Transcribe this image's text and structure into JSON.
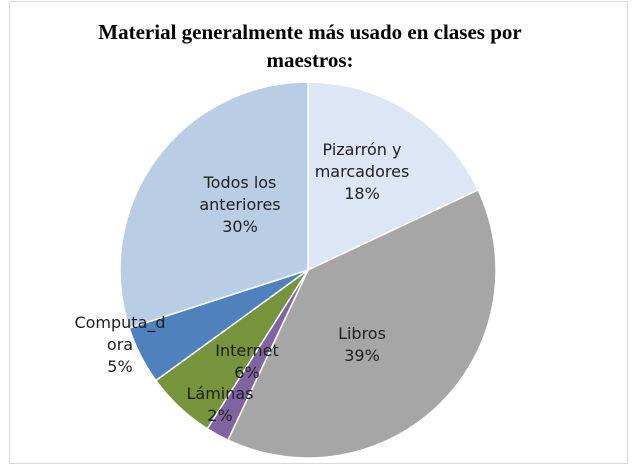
{
  "chart_data": {
    "type": "pie",
    "title": "Material generalmente más usado en clases por maestros:",
    "categories": [
      "Pizarrón y marcadores",
      "Libros",
      "Láminas",
      "Internet",
      "Computa_dora",
      "Todos los anteriores"
    ],
    "values": [
      18,
      39,
      2,
      6,
      5,
      30
    ],
    "value_labels": [
      "18%",
      "39%",
      "2%",
      "6%",
      "5%",
      "30%"
    ],
    "colors": [
      "#dce6f4",
      "#a6a6a6",
      "#8064a2",
      "#77933c",
      "#4f81bd",
      "#b9cde5"
    ]
  }
}
